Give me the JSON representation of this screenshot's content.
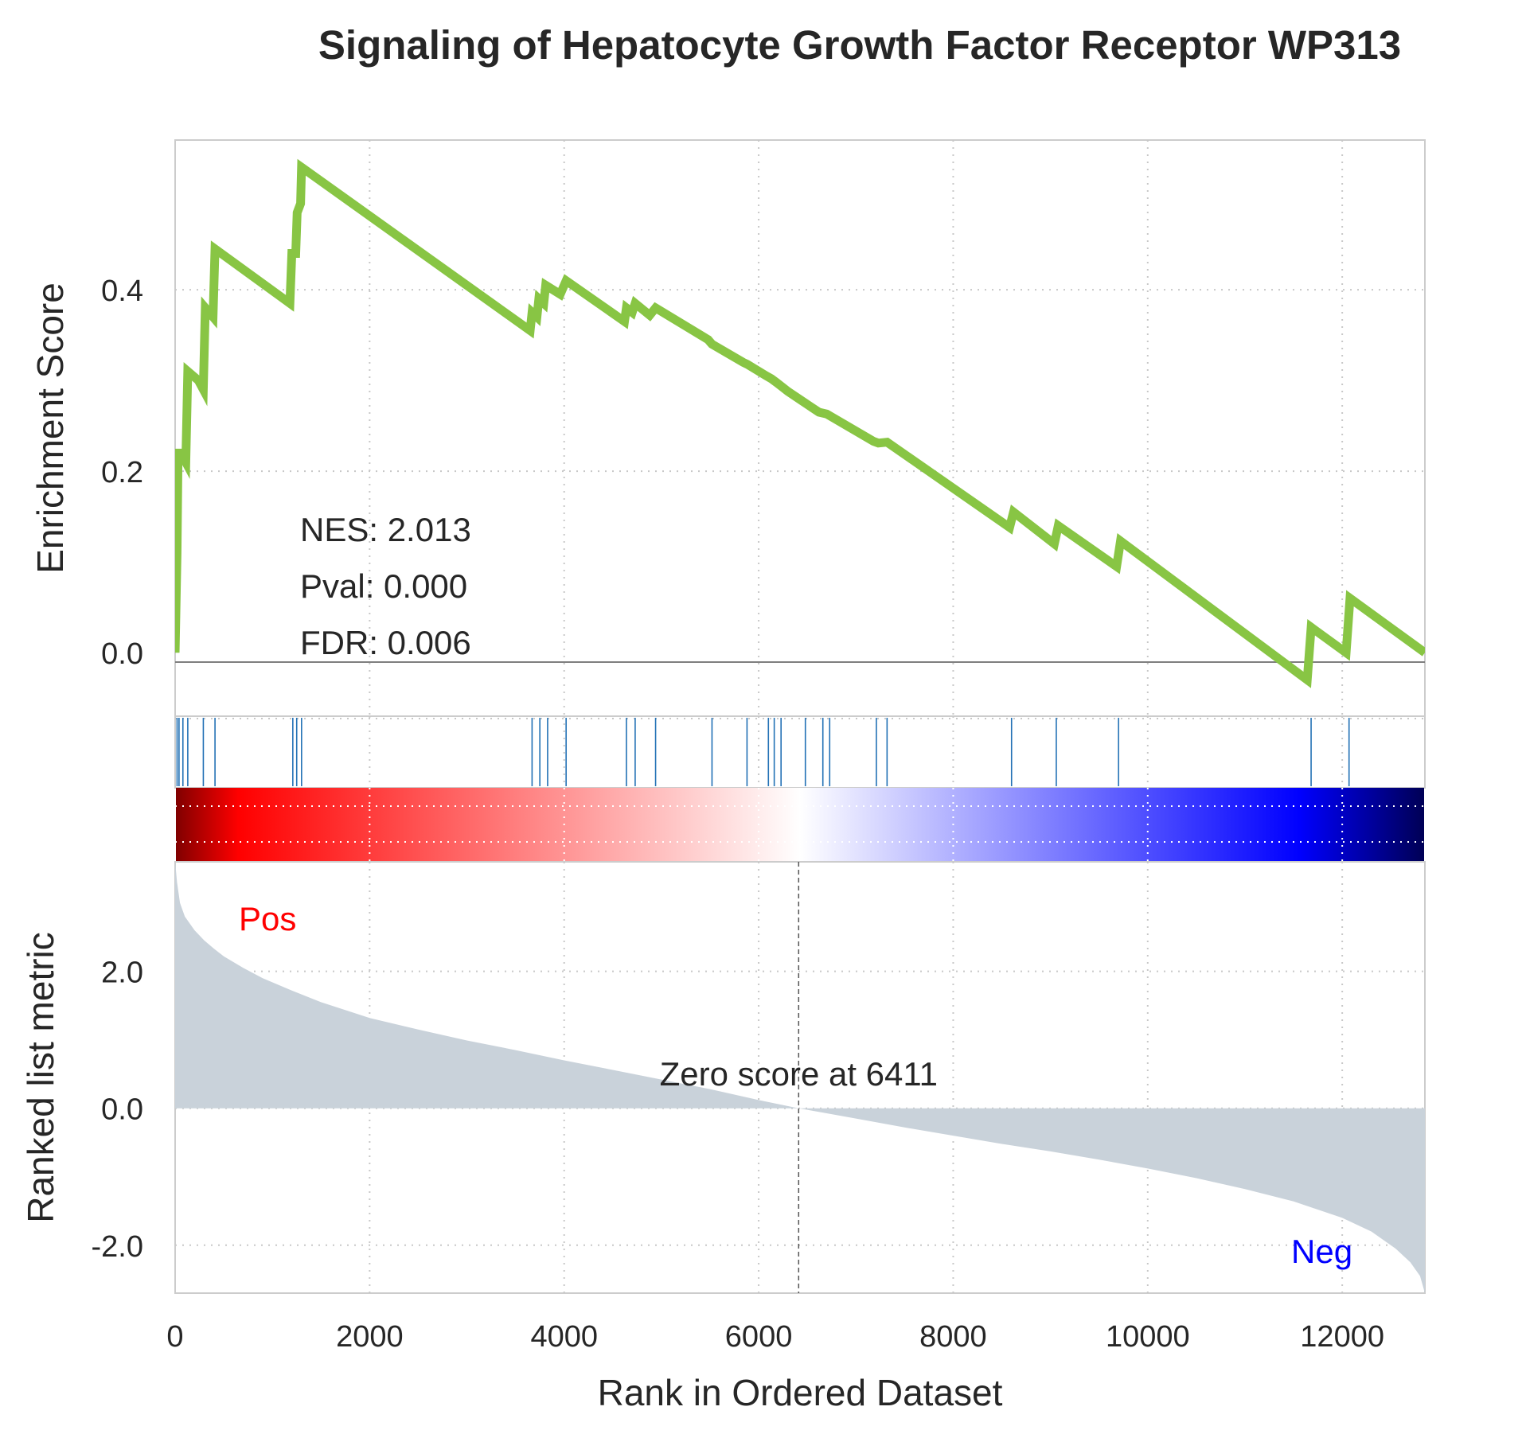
{
  "chart_data": {
    "title": "Signaling of Hepatocyte Growth Factor Receptor WP313",
    "type": "line",
    "xlabel": "Rank in Ordered Dataset",
    "xlim": [
      0,
      12850
    ],
    "x_ticks": [
      0,
      2000,
      4000,
      6000,
      8000,
      10000,
      12000
    ],
    "es_panel": {
      "ylabel": "Enrichment Score",
      "ylim": [
        -0.07,
        0.565
      ],
      "y_ticks": [
        0.0,
        0.2,
        0.4
      ],
      "y_tick_labels": [
        "0.0",
        "0.2",
        "0.4"
      ],
      "line_color": "#88c544",
      "annotations": [
        "NES: 2.013",
        "Pval: 0.000",
        "FDR: 0.006"
      ],
      "es_points": [
        [
          0,
          0.0
        ],
        [
          20,
          0.11
        ],
        [
          30,
          0.22
        ],
        [
          60,
          0.22
        ],
        [
          110,
          0.21
        ],
        [
          130,
          0.31
        ],
        [
          240,
          0.3
        ],
        [
          290,
          0.29
        ],
        [
          310,
          0.38
        ],
        [
          390,
          0.37
        ],
        [
          410,
          0.445
        ],
        [
          1180,
          0.385
        ],
        [
          1200,
          0.44
        ],
        [
          1240,
          0.44
        ],
        [
          1255,
          0.485
        ],
        [
          1290,
          0.495
        ],
        [
          1300,
          0.535
        ],
        [
          3650,
          0.355
        ],
        [
          3670,
          0.375
        ],
        [
          3720,
          0.37
        ],
        [
          3740,
          0.39
        ],
        [
          3790,
          0.385
        ],
        [
          3810,
          0.405
        ],
        [
          3960,
          0.395
        ],
        [
          4020,
          0.41
        ],
        [
          4620,
          0.365
        ],
        [
          4640,
          0.38
        ],
        [
          4700,
          0.375
        ],
        [
          4730,
          0.385
        ],
        [
          4880,
          0.372
        ],
        [
          4940,
          0.38
        ],
        [
          5480,
          0.345
        ],
        [
          5520,
          0.34
        ],
        [
          5840,
          0.32
        ],
        [
          5880,
          0.318
        ],
        [
          6080,
          0.305
        ],
        [
          6130,
          0.302
        ],
        [
          6180,
          0.298
        ],
        [
          6240,
          0.293
        ],
        [
          6300,
          0.288
        ],
        [
          6480,
          0.275
        ],
        [
          6620,
          0.265
        ],
        [
          6700,
          0.263
        ],
        [
          7180,
          0.233
        ],
        [
          7230,
          0.231
        ],
        [
          7320,
          0.232
        ],
        [
          8580,
          0.138
        ],
        [
          8620,
          0.155
        ],
        [
          9040,
          0.12
        ],
        [
          9080,
          0.14
        ],
        [
          9680,
          0.095
        ],
        [
          9720,
          0.123
        ],
        [
          11640,
          -0.03
        ],
        [
          11680,
          0.028
        ],
        [
          12040,
          0.0
        ],
        [
          12080,
          0.06
        ],
        [
          12850,
          0.0
        ]
      ]
    },
    "hits_panel": {
      "line_color": "#2271b5",
      "hit_ranks": [
        20,
        40,
        80,
        130,
        290,
        410,
        1210,
        1250,
        1300,
        3670,
        3750,
        3830,
        4020,
        4640,
        4730,
        4940,
        5520,
        5880,
        6100,
        6160,
        6230,
        6480,
        6660,
        6730,
        7210,
        7320,
        8600,
        9060,
        9700,
        11680,
        12070
      ]
    },
    "heat_bar": {
      "colormap": "seismic",
      "stops": [
        "#000055",
        "#0000ff",
        "#ffffff",
        "#ff0000",
        "#800000"
      ]
    },
    "metric_panel": {
      "ylabel": "Ranked list metric",
      "ylim": [
        -2.7,
        3.6
      ],
      "y_ticks": [
        -2.0,
        0.0,
        2.0
      ],
      "y_tick_labels": [
        "-2.0",
        "0.0",
        "2.0"
      ],
      "fill_color": "#c9d2da",
      "pos_label": "Pos",
      "neg_label": "Neg",
      "pos_color": "#ff0000",
      "neg_color": "#0000ff",
      "zero_cross": 6411,
      "zero_label": "Zero score at 6411",
      "metric_curve": [
        [
          0,
          3.6
        ],
        [
          20,
          3.3
        ],
        [
          50,
          3.0
        ],
        [
          100,
          2.8
        ],
        [
          200,
          2.6
        ],
        [
          300,
          2.45
        ],
        [
          400,
          2.33
        ],
        [
          500,
          2.22
        ],
        [
          700,
          2.05
        ],
        [
          900,
          1.9
        ],
        [
          1200,
          1.72
        ],
        [
          1500,
          1.55
        ],
        [
          2000,
          1.32
        ],
        [
          2500,
          1.15
        ],
        [
          3000,
          0.99
        ],
        [
          3500,
          0.85
        ],
        [
          4000,
          0.7
        ],
        [
          4500,
          0.56
        ],
        [
          5000,
          0.42
        ],
        [
          5500,
          0.28
        ],
        [
          6000,
          0.12
        ],
        [
          6411,
          0.0
        ],
        [
          7000,
          -0.15
        ],
        [
          7500,
          -0.28
        ],
        [
          8000,
          -0.4
        ],
        [
          8500,
          -0.52
        ],
        [
          9000,
          -0.63
        ],
        [
          9500,
          -0.75
        ],
        [
          10000,
          -0.88
        ],
        [
          10500,
          -1.02
        ],
        [
          11000,
          -1.18
        ],
        [
          11500,
          -1.36
        ],
        [
          12000,
          -1.6
        ],
        [
          12300,
          -1.8
        ],
        [
          12550,
          -2.05
        ],
        [
          12700,
          -2.25
        ],
        [
          12800,
          -2.45
        ],
        [
          12850,
          -2.7
        ]
      ]
    }
  }
}
